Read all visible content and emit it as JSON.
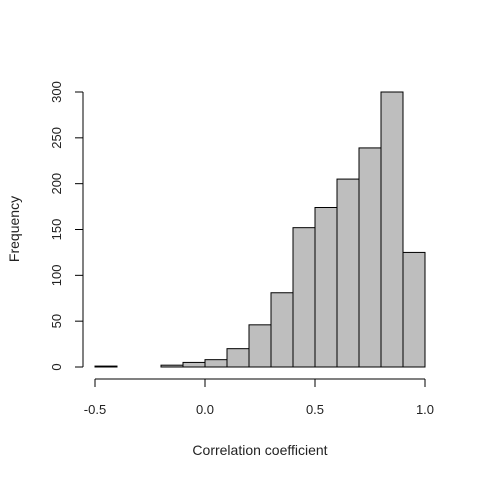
{
  "chart_data": {
    "type": "bar",
    "subtype": "histogram",
    "xlabel": "Correlation coefficient",
    "ylabel": "Frequency",
    "xlim": [
      -0.5,
      1.0
    ],
    "ylim": [
      0,
      300
    ],
    "bin_width": 0.1,
    "bins": [
      {
        "x0": -0.5,
        "x1": -0.4,
        "value": 1
      },
      {
        "x0": -0.4,
        "x1": -0.3,
        "value": 0
      },
      {
        "x0": -0.3,
        "x1": -0.2,
        "value": 0
      },
      {
        "x0": -0.2,
        "x1": -0.1,
        "value": 2
      },
      {
        "x0": -0.1,
        "x1": 0.0,
        "value": 5
      },
      {
        "x0": 0.0,
        "x1": 0.1,
        "value": 8
      },
      {
        "x0": 0.1,
        "x1": 0.2,
        "value": 20
      },
      {
        "x0": 0.2,
        "x1": 0.3,
        "value": 46
      },
      {
        "x0": 0.3,
        "x1": 0.4,
        "value": 81
      },
      {
        "x0": 0.4,
        "x1": 0.5,
        "value": 152
      },
      {
        "x0": 0.5,
        "x1": 0.6,
        "value": 174
      },
      {
        "x0": 0.6,
        "x1": 0.7,
        "value": 205
      },
      {
        "x0": 0.7,
        "x1": 0.8,
        "value": 239
      },
      {
        "x0": 0.8,
        "x1": 0.9,
        "value": 300
      },
      {
        "x0": 0.9,
        "x1": 1.0,
        "value": 125
      }
    ],
    "x_ticks": [
      -0.5,
      0.0,
      0.5,
      1.0
    ],
    "x_tick_labels": [
      "-0.5",
      "0.0",
      "0.5",
      "1.0"
    ],
    "y_ticks": [
      0,
      50,
      100,
      150,
      200,
      250,
      300
    ],
    "y_tick_labels": [
      "0",
      "50",
      "100",
      "150",
      "200",
      "250",
      "300"
    ],
    "bar_color": "#bebebe",
    "edge_color": "#000000",
    "grid": false,
    "legend": "none"
  }
}
